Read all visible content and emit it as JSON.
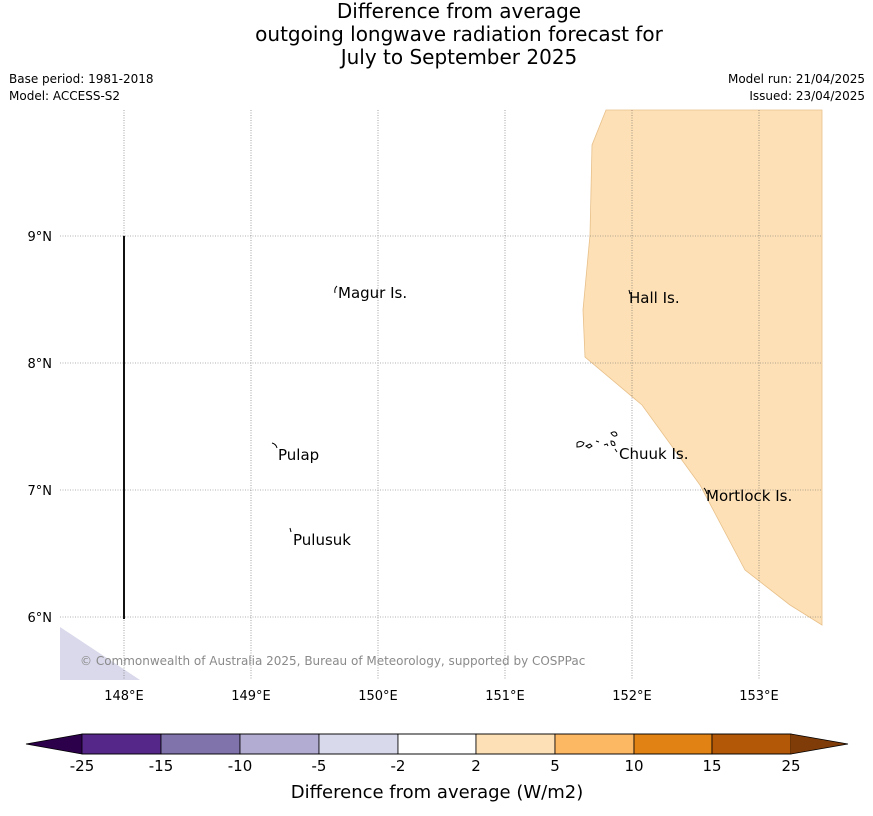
{
  "title": {
    "line1": "Difference from average",
    "line2": "outgoing longwave radiation forecast for",
    "line3": "July to September 2025"
  },
  "meta": {
    "base_period": "Base period: 1981-2018",
    "model": "Model: ACCESS-S2",
    "model_run": "Model run: 21/04/2025",
    "issued": "Issued: 23/04/2025"
  },
  "map": {
    "lat_labels": [
      "9°N",
      "8°N",
      "7°N",
      "6°N"
    ],
    "lon_labels": [
      "148°E",
      "149°E",
      "150°E",
      "151°E",
      "152°E",
      "153°E"
    ],
    "places": [
      {
        "name": "Magur Is."
      },
      {
        "name": "Hall Is."
      },
      {
        "name": "Pulap"
      },
      {
        "name": "Chuuk Is."
      },
      {
        "name": "Mortlock Is."
      },
      {
        "name": "Pulusuk"
      }
    ],
    "copyright": "© Commonwealth of Australia 2025, Bureau of Meteorology, supported by COSPPac",
    "fill_colors": {
      "positive_2_5": "#fde0b5",
      "negative_5_2": "#d9d9eb"
    }
  },
  "colorbar": {
    "label": "Difference from average (W/m2)",
    "ticks": [
      "-25",
      "-15",
      "-10",
      "-5",
      "-2",
      "2",
      "5",
      "10",
      "15",
      "25"
    ],
    "colors": [
      "#542788",
      "#8073ac",
      "#b2abd2",
      "#d8daeb",
      "#ffffff",
      "#fee0b6",
      "#fdb863",
      "#e08214",
      "#b35806"
    ],
    "under_color": "#2d004b",
    "over_color": "#7f3b08"
  }
}
